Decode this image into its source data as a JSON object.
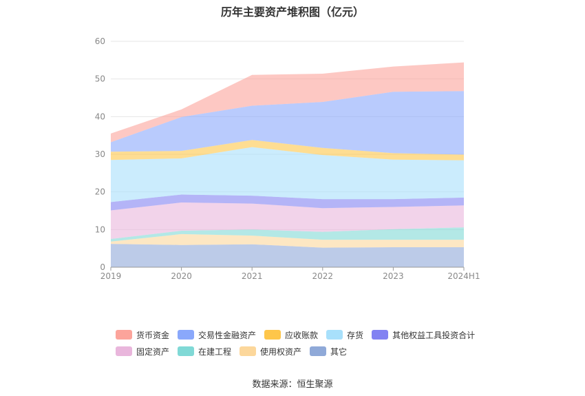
{
  "chart_data": {
    "type": "area",
    "stacked": true,
    "title": "历年主要资产堆积图（亿元）",
    "categories": [
      "2019",
      "2020",
      "2021",
      "2022",
      "2023",
      "2024H1"
    ],
    "ylim": [
      0,
      60
    ],
    "yticks": [
      0,
      10,
      20,
      30,
      40,
      50,
      60
    ],
    "grid": true,
    "legend_position": "bottom",
    "series": [
      {
        "name": "其它",
        "color": "#8fa9d8",
        "values": [
          6.2,
          5.9,
          6.1,
          5.2,
          5.3,
          5.3
        ]
      },
      {
        "name": "使用权资产",
        "color": "#fcd79b",
        "values": [
          0.6,
          2.9,
          2.3,
          2.1,
          2.0,
          2.0
        ]
      },
      {
        "name": "在建工程",
        "color": "#80d9d6",
        "values": [
          0.7,
          0.9,
          1.6,
          2.1,
          2.8,
          3.3
        ]
      },
      {
        "name": "固定资产",
        "color": "#e9b6dc",
        "values": [
          7.6,
          7.5,
          6.9,
          6.3,
          5.9,
          5.8
        ]
      },
      {
        "name": "其他权益工具投资合计",
        "color": "#8282f2",
        "values": [
          2.2,
          2.1,
          2.1,
          2.4,
          2.1,
          2.1
        ]
      },
      {
        "name": "存货",
        "color": "#a8e0fb",
        "values": [
          11.2,
          9.6,
          12.9,
          11.7,
          10.5,
          9.9
        ]
      },
      {
        "name": "应收账款",
        "color": "#fec64a",
        "values": [
          2.2,
          2.0,
          1.9,
          1.9,
          1.7,
          1.5
        ]
      },
      {
        "name": "交易性金融资产",
        "color": "#8aa8fb",
        "values": [
          2.5,
          9.0,
          9.1,
          12.2,
          16.3,
          16.9
        ]
      },
      {
        "name": "货币资金",
        "color": "#fca49b",
        "values": [
          2.3,
          2.0,
          8.2,
          7.5,
          6.7,
          7.6
        ]
      }
    ],
    "legend_order": [
      "货币资金",
      "交易性金融资产",
      "应收账款",
      "存货",
      "其他权益工具投资合计",
      "固定资产",
      "在建工程",
      "使用权资产",
      "其它"
    ]
  },
  "footer": {
    "source": "数据来源：恒生聚源"
  }
}
